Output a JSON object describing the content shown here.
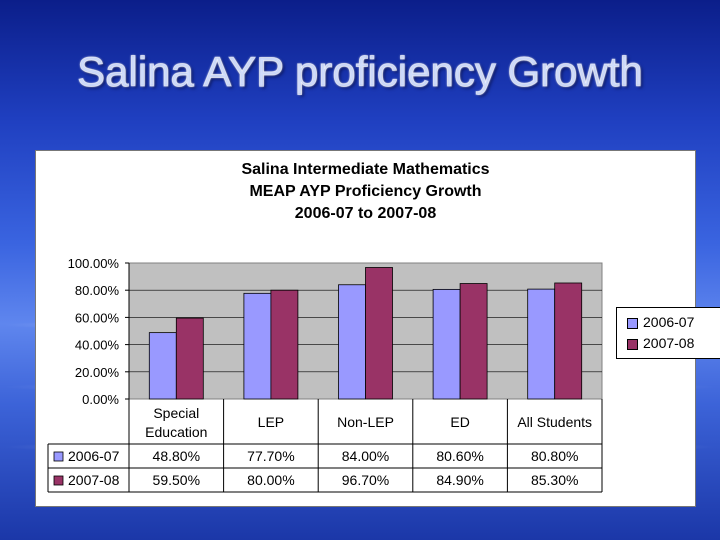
{
  "slide": {
    "title": "Salina AYP proficiency Growth"
  },
  "chart_data": {
    "type": "bar",
    "title_lines": [
      "Salina Intermediate Mathematics",
      "MEAP AYP Proficiency Growth",
      "2006-07 to 2007-08"
    ],
    "categories": [
      [
        "Special",
        "Education"
      ],
      [
        "LEP"
      ],
      [
        "Non-LEP"
      ],
      [
        "ED"
      ],
      [
        "All Students"
      ]
    ],
    "series": [
      {
        "name": "2006-07",
        "color": "#9999ff",
        "values": [
          48.8,
          77.7,
          84.0,
          80.6,
          80.8
        ],
        "labels": [
          "48.80%",
          "77.70%",
          "84.00%",
          "80.60%",
          "80.80%"
        ]
      },
      {
        "name": "2007-08",
        "color": "#993366",
        "values": [
          59.5,
          80.0,
          96.7,
          84.9,
          85.3
        ],
        "labels": [
          "59.50%",
          "80.00%",
          "96.70%",
          "84.90%",
          "85.30%"
        ]
      }
    ],
    "yticks": [
      "100.00%",
      "80.00%",
      "60.00%",
      "40.00%",
      "20.00%",
      "0.00%"
    ],
    "ylim": [
      0,
      100
    ],
    "grid": true,
    "legend_position": "right",
    "plot_background": "#c0c0c0"
  }
}
